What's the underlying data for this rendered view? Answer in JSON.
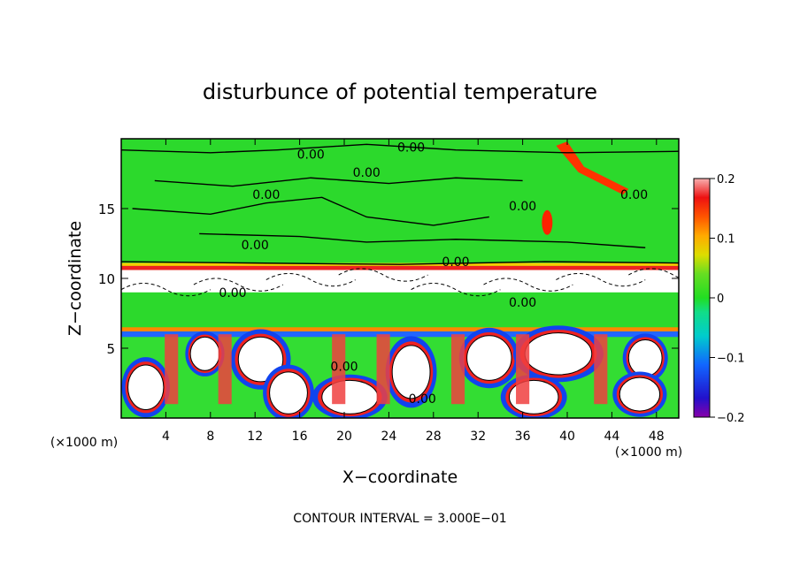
{
  "chart_data": {
    "type": "heatmap",
    "title": "disturbunce of potential temperature",
    "xlabel": "X−coordinate",
    "ylabel": "Z−coordinate",
    "x_unit": "(×1000 m)",
    "y_unit": "(×1000 m)",
    "xlim": [
      0,
      50
    ],
    "ylim": [
      0,
      20
    ],
    "x_ticks": [
      4,
      8,
      12,
      16,
      20,
      24,
      28,
      32,
      36,
      40,
      44,
      48
    ],
    "y_ticks": [
      5,
      10,
      15
    ],
    "colorbar": {
      "range": [
        -0.2,
        0.2
      ],
      "tick_labels": [
        "0.2",
        "0.1",
        "0",
        "−0.1",
        "−0.2"
      ],
      "tick_values": [
        0.2,
        0.1,
        0,
        -0.1,
        -0.2
      ]
    },
    "contour_labels": [
      "0.00",
      "0.00",
      "0.00",
      "0.00",
      "0.00",
      "0.00",
      "0.00",
      "0.00",
      "0.00",
      "0.00",
      "0.00",
      "0.00"
    ],
    "footer": "CONTOUR INTERVAL = 3.000E−01",
    "colors": {
      "background_field": "#2cd92c",
      "positive_max": "#f8b0b0",
      "zero": "#22dd22",
      "negative_max": "#8800aa"
    }
  }
}
